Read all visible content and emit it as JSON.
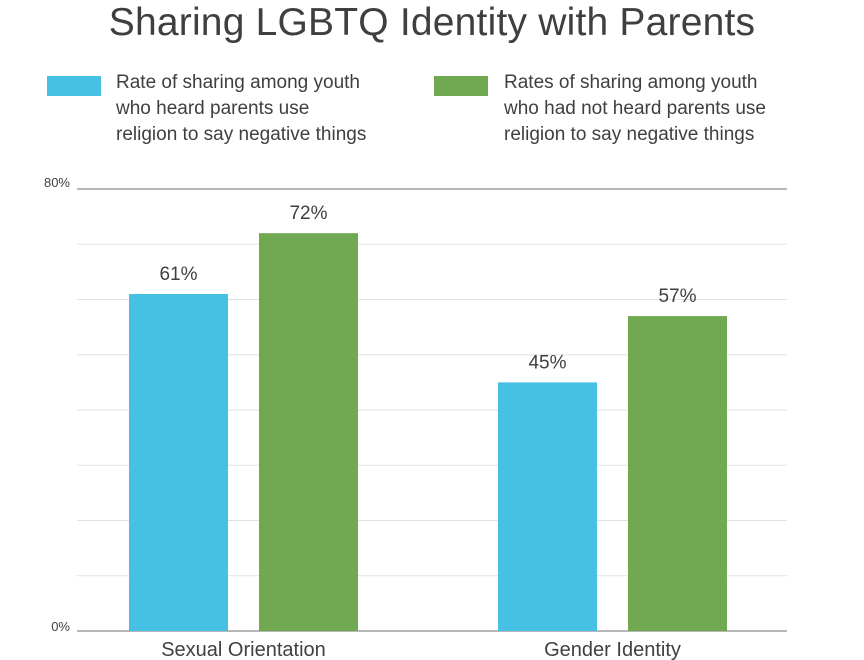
{
  "chart_data": {
    "type": "bar",
    "title": "Sharing LGBTQ Identity with Parents",
    "categories": [
      "Sexual Orientation",
      "Gender Identity"
    ],
    "series": [
      {
        "name": "Rate of sharing among youth who heard parents use religion to say negative things",
        "name_lines": [
          "Rate of sharing among youth",
          "who heard parents use",
          "religion to say negative things"
        ],
        "color": "#46c1e3",
        "values": [
          61,
          45
        ],
        "labels": [
          "61%",
          "45%"
        ]
      },
      {
        "name": "Rates of sharing among youth who had not heard parents use religion to say negative things",
        "name_lines": [
          "Rates of sharing among youth",
          "who had not heard parents use",
          "religion to say negative things"
        ],
        "color": "#70a951",
        "values": [
          72,
          57
        ],
        "labels": [
          "72%",
          "57%"
        ]
      }
    ],
    "ylim": [
      0,
      80
    ],
    "ytick_labels": [
      "0%",
      "80%"
    ],
    "xlabel": "",
    "ylabel": "",
    "grid": true,
    "legend_position": "top"
  }
}
